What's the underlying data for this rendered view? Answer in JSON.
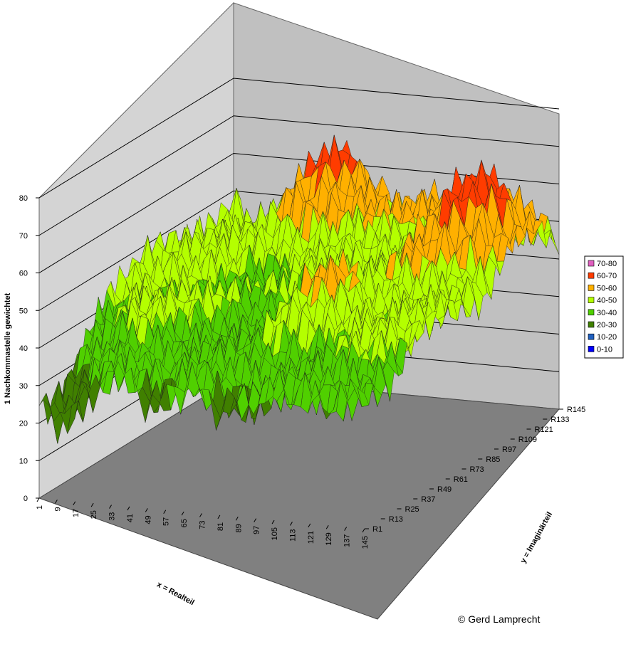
{
  "copyright": "© Gerd Lamprecht",
  "colors": {
    "back_wall": "#c0c0c0",
    "side_wall": "#d4d4d4",
    "floor": "#808080",
    "grid": "#000000"
  },
  "chart_data": {
    "type": "surface",
    "zlabel": "1 Nachkommastelle gewichtet",
    "xlabel": "x = Realteil",
    "ylabel": "y = Imaginärteil",
    "zlim": [
      0,
      80
    ],
    "z_ticks": [
      "0",
      "10",
      "20",
      "30",
      "40",
      "50",
      "60",
      "70",
      "80"
    ],
    "x_ticks": [
      "1",
      "9",
      "17",
      "25",
      "33",
      "41",
      "49",
      "57",
      "65",
      "73",
      "81",
      "89",
      "97",
      "105",
      "113",
      "121",
      "129",
      "137",
      "145"
    ],
    "y_ticks": [
      "R1",
      "R13",
      "R25",
      "R37",
      "R49",
      "R61",
      "R73",
      "R85",
      "R97",
      "R109",
      "R121",
      "R133",
      "R145"
    ],
    "legend": [
      {
        "label": "70-80",
        "color": "#e060c0"
      },
      {
        "label": "60-70",
        "color": "#ff3c00"
      },
      {
        "label": "50-60",
        "color": "#ffb000"
      },
      {
        "label": "40-50",
        "color": "#b4ff00"
      },
      {
        "label": "30-40",
        "color": "#50d000"
      },
      {
        "label": "20-30",
        "color": "#408000"
      },
      {
        "label": "10-20",
        "color": "#2060c0"
      },
      {
        "label": "0-10",
        "color": "#0000ff"
      }
    ]
  }
}
